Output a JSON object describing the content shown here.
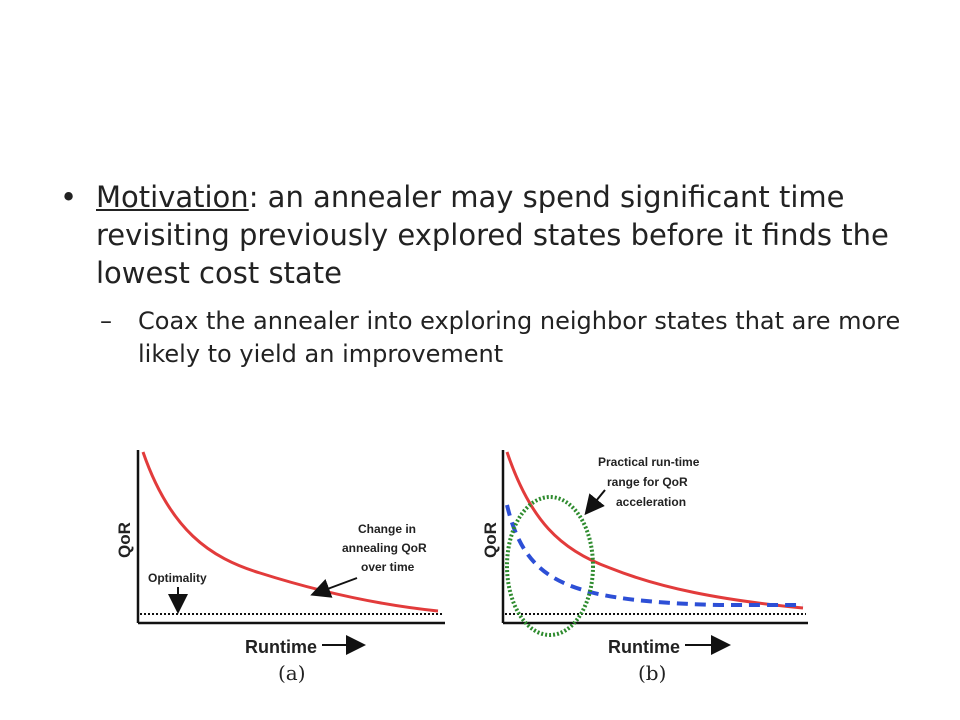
{
  "slide": {
    "bullet1": {
      "term": "Motivation",
      "text": ": an annealer may spend significant time revisiting previously explored states before it finds the lowest cost state"
    },
    "bullet2": {
      "text": "Coax the annealer into exploring neighbor states that are more likely to yield an improvement"
    }
  },
  "figure": {
    "panel_a": {
      "xlabel": "Runtime",
      "ylabel": "QoR",
      "caption": "(a)",
      "annotation_curve": [
        "Change in",
        "annealing QoR",
        "over time"
      ],
      "annotation_optimality": "Optimality"
    },
    "panel_b": {
      "xlabel": "Runtime",
      "ylabel": "QoR",
      "caption": "(b)",
      "annotation_range": [
        "Practical run-time",
        "range for QoR",
        "acceleration"
      ]
    },
    "colors": {
      "baseline_curve": "#e23b3b",
      "accelerated_curve": "#2d4fd6",
      "range_ellipse": "#2e8b2e",
      "axes": "#111111"
    }
  }
}
